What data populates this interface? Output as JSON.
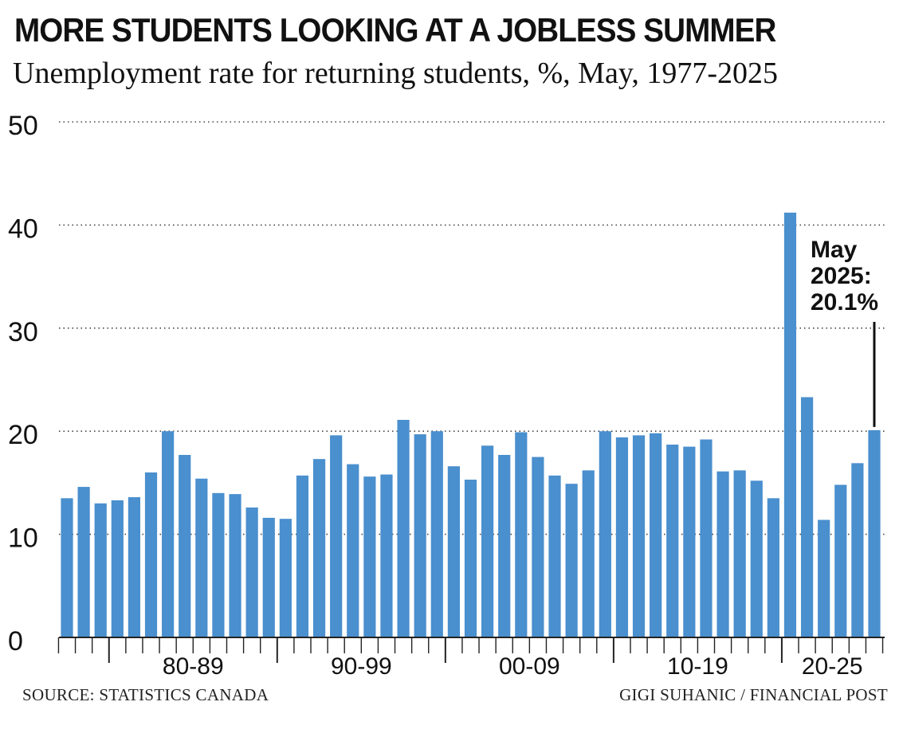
{
  "chart_data": {
    "type": "bar",
    "title": "MORE STUDENTS LOOKING AT A JOBLESS SUMMER",
    "subtitle": "Unemployment rate for returning students, %, May, 1977-2025",
    "categories": [
      1977,
      1978,
      1979,
      1980,
      1981,
      1982,
      1983,
      1984,
      1985,
      1986,
      1987,
      1988,
      1989,
      1990,
      1991,
      1992,
      1993,
      1994,
      1995,
      1996,
      1997,
      1998,
      1999,
      2000,
      2001,
      2002,
      2003,
      2004,
      2005,
      2006,
      2007,
      2008,
      2009,
      2010,
      2011,
      2012,
      2013,
      2014,
      2015,
      2016,
      2017,
      2018,
      2019,
      2020,
      2021,
      2022,
      2023,
      2024,
      2025
    ],
    "values": [
      13.5,
      14.6,
      13.0,
      13.3,
      13.6,
      16.0,
      20.0,
      17.7,
      15.4,
      14.0,
      13.9,
      12.6,
      11.6,
      11.5,
      15.7,
      17.3,
      19.6,
      16.8,
      15.6,
      15.8,
      21.1,
      19.7,
      20.0,
      16.6,
      15.3,
      18.6,
      17.7,
      19.9,
      17.5,
      15.7,
      14.9,
      16.2,
      20.0,
      19.4,
      19.6,
      19.8,
      18.7,
      18.5,
      19.2,
      16.1,
      16.2,
      15.2,
      13.5,
      41.2,
      23.3,
      11.4,
      14.8,
      16.9,
      20.1
    ],
    "ylim": [
      0,
      50
    ],
    "yticks": [
      "0",
      "10",
      "20",
      "30",
      "40",
      "50"
    ],
    "x_group_labels": [
      "80-89",
      "90-99",
      "00-09",
      "10-19",
      "20-25"
    ],
    "grid": "dotted horizontal",
    "bar_color": "#4a8fce",
    "annotation": {
      "lines": [
        "May",
        "2025:",
        "20.1%"
      ],
      "target_year": 2025
    }
  },
  "footer": {
    "source": "SOURCE: STATISTICS CANADA",
    "credit": "GIGI SUHANIC / FINANCIAL POST"
  }
}
